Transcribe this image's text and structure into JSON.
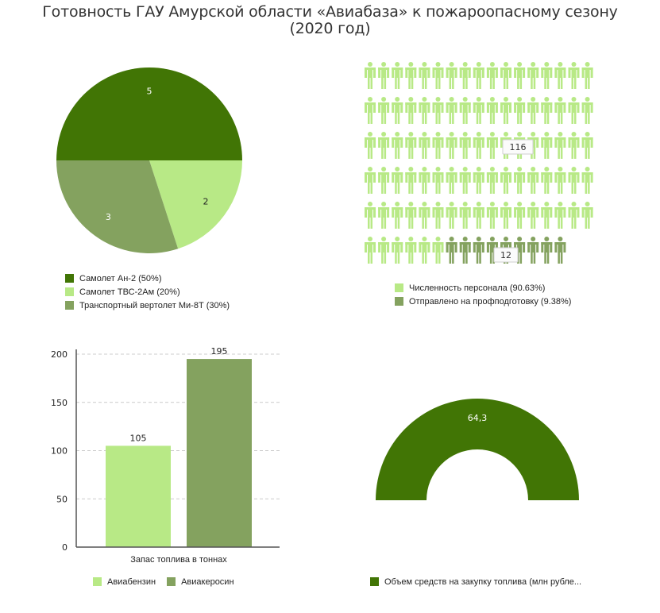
{
  "title_line1": "Готовность ГАУ Амурской области «Авиабаза» к пожароопасному сезону",
  "title_line2": "(2020 год)",
  "chart_data": [
    {
      "type": "pie",
      "title": "",
      "slices": [
        {
          "label": "Самолет Ан-2",
          "value": 5,
          "percent_label": "Самолет Ан-2 (50%)",
          "color": "#417505"
        },
        {
          "label": "Самолет ТВС-2Ам",
          "value": 2,
          "percent_label": "Самолет ТВС-2Ам (20%)",
          "color": "#b8e986"
        },
        {
          "label": "Транспортный вертолет Ми-8Т",
          "value": 3,
          "percent_label": "Транспортный вертолет Ми-8Т (30%)",
          "color": "#84a25f"
        }
      ],
      "legend_position": "bottom-left"
    },
    {
      "type": "pictograph",
      "title": "",
      "total_icons": 100,
      "icons_per_row": 17,
      "series": [
        {
          "name": "Численность персонала",
          "value": 116,
          "percent": 90.63,
          "icons": 91,
          "legend": "Численность персонала (90.63%)",
          "color": "#b8e986"
        },
        {
          "name": "Отправлено на профподготовку",
          "value": 12,
          "percent": 9.38,
          "icons": 9,
          "legend": "Отправлено на профподготовку (9.38%)",
          "color": "#84a25f"
        }
      ],
      "legend_position": "bottom-left"
    },
    {
      "type": "bar",
      "title": "",
      "categories": [
        "Запас топлива в тоннах"
      ],
      "series": [
        {
          "name": "Авиабензин",
          "values": [
            105
          ],
          "color": "#b8e986"
        },
        {
          "name": "Авиакеросин",
          "values": [
            195
          ],
          "color": "#84a25f"
        }
      ],
      "xlabel": "Запас топлива в тоннах",
      "ylabel": "",
      "ylim": [
        0,
        200
      ],
      "yticks": [
        0,
        50,
        100,
        150,
        200
      ],
      "grid": true,
      "legend_position": "bottom"
    },
    {
      "type": "pie",
      "subtype": "half-donut",
      "title": "",
      "slices": [
        {
          "label": "Объем средств на закупку топлива (млн рубле...",
          "value": 64.3,
          "value_label": "64,3",
          "color": "#417505"
        }
      ],
      "legend_position": "bottom-left"
    }
  ]
}
